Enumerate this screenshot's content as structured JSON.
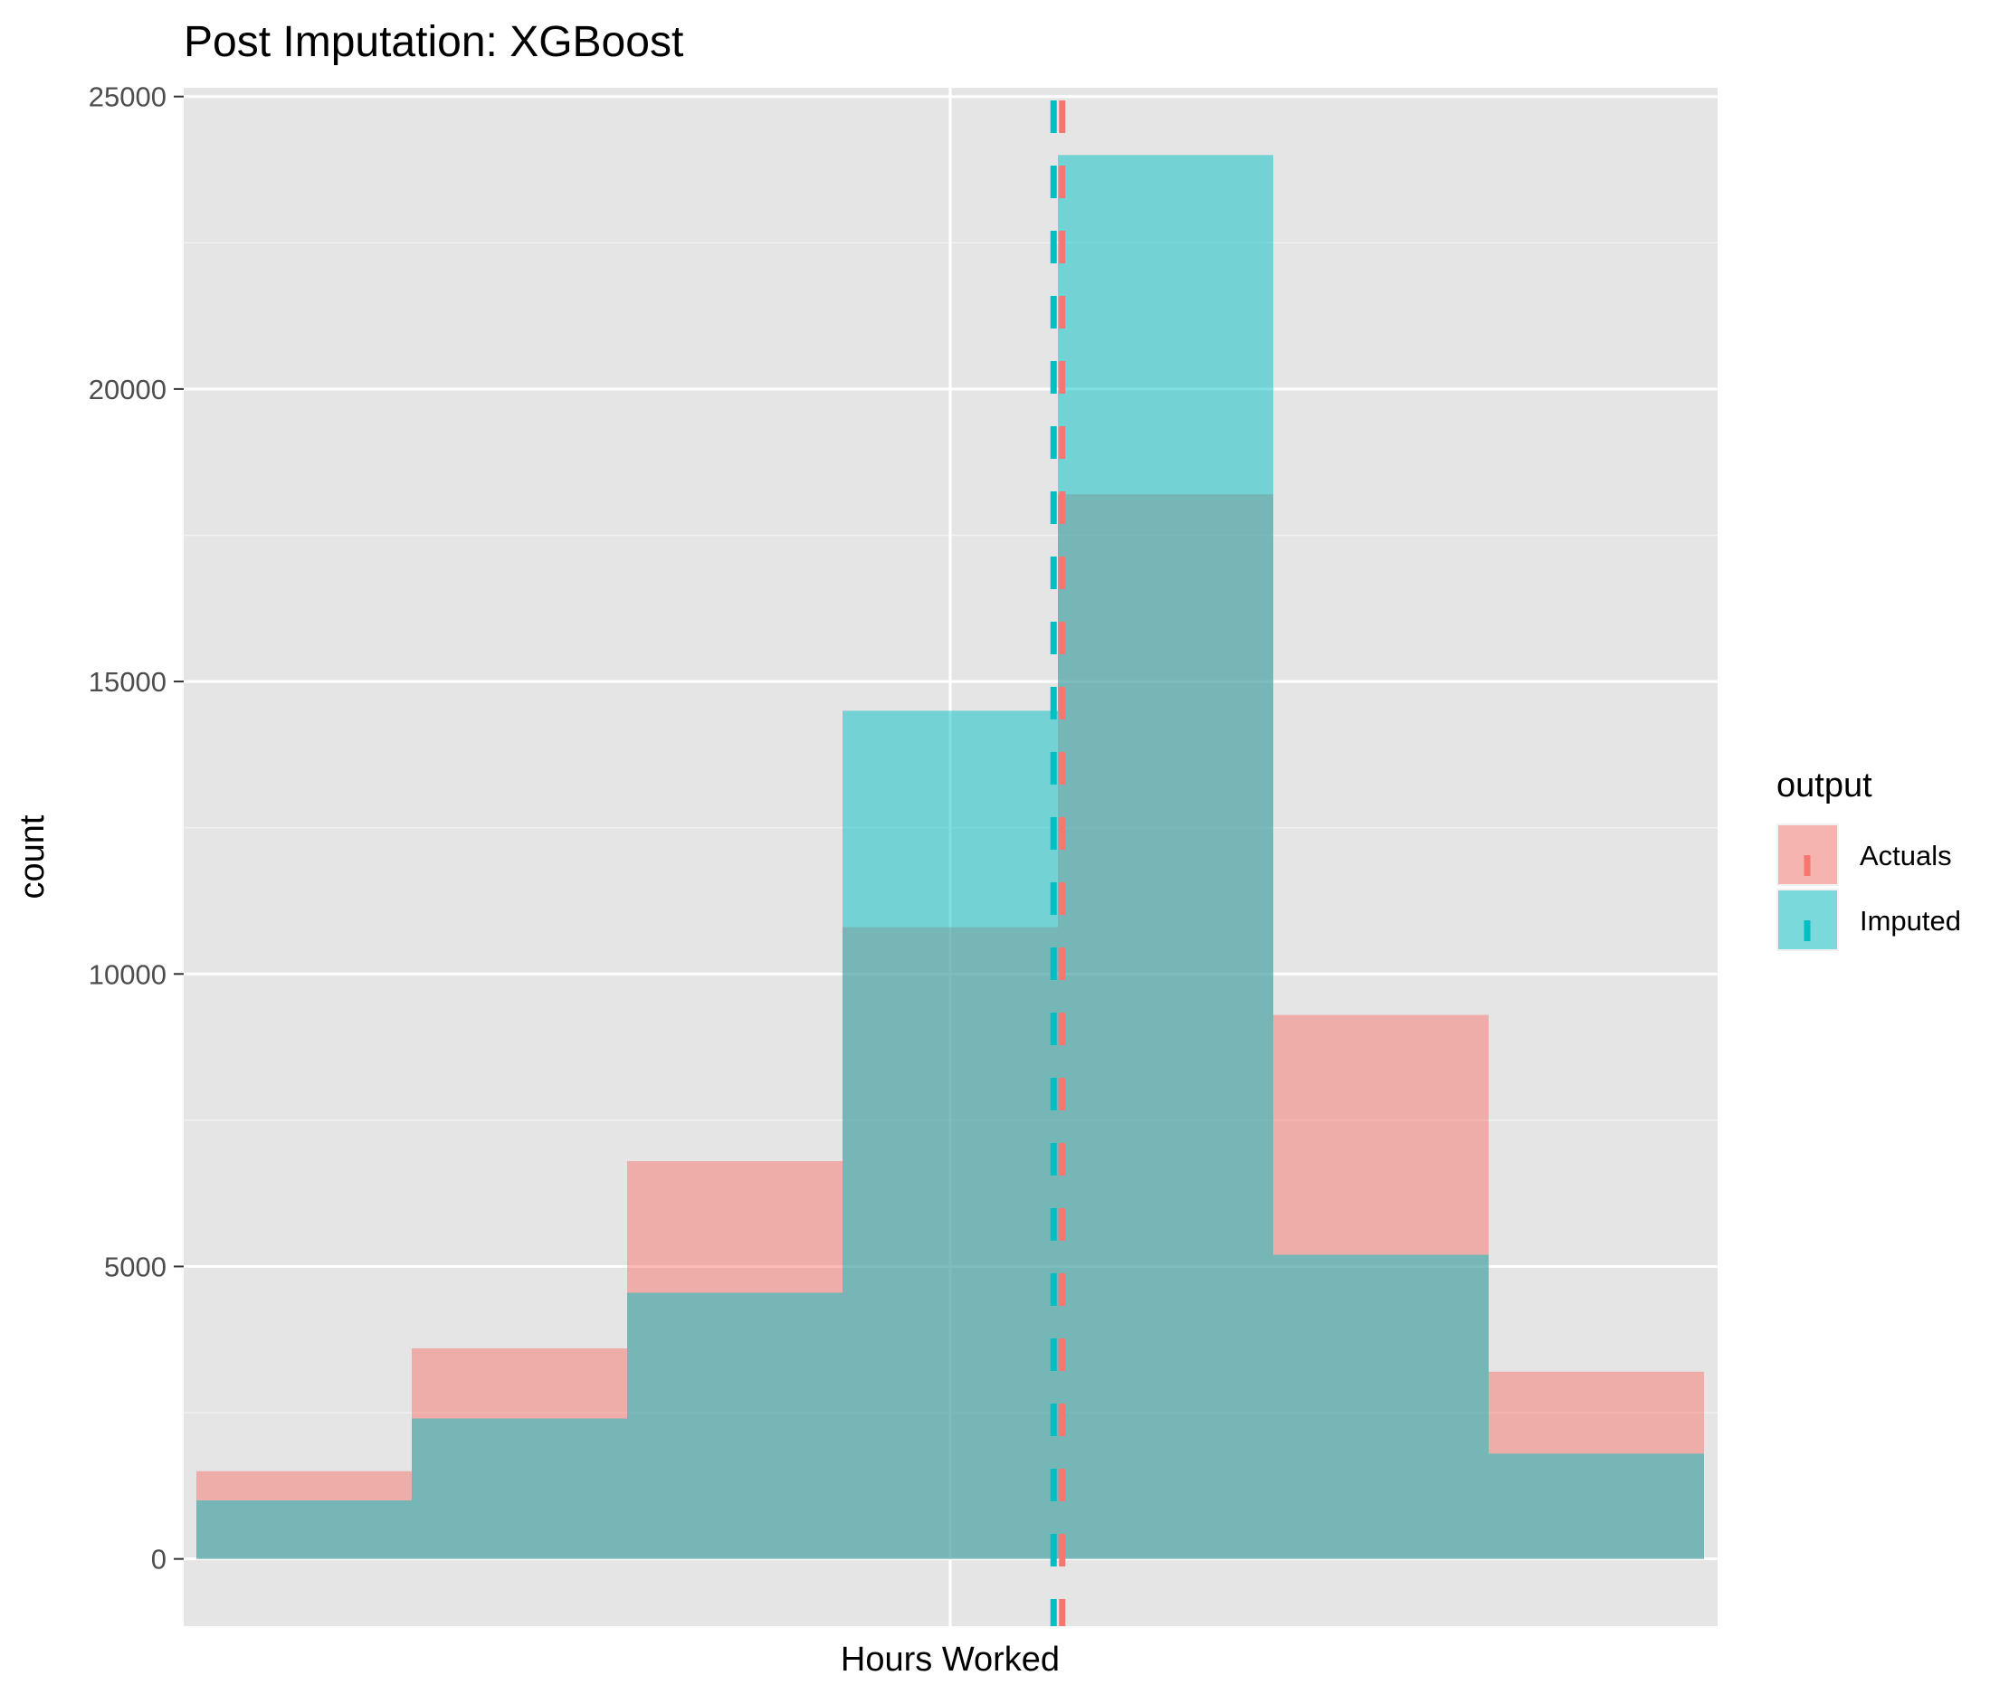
{
  "chart_data": {
    "type": "bar",
    "title": "Post Imputation: XGBoost",
    "xlabel": "Hours Worked",
    "ylabel": "count",
    "ylim": [
      -1150,
      25150
    ],
    "yticks": [
      0,
      5000,
      10000,
      15000,
      20000,
      25000
    ],
    "bins": 7,
    "series": [
      {
        "name": "Actuals",
        "color": "#F8766D",
        "values": [
          1500,
          3600,
          6800,
          10800,
          18200,
          9300,
          3200
        ]
      },
      {
        "name": "Imputed",
        "color": "#00BFC4",
        "values": [
          1000,
          2400,
          4550,
          14500,
          24000,
          5200,
          1800
        ]
      }
    ],
    "reference_lines": [
      {
        "series": "Actuals",
        "bin_position": 4.02,
        "style": "dashed"
      },
      {
        "series": "Imputed",
        "bin_position": 3.98,
        "style": "dashed"
      }
    ],
    "legend": {
      "title": "output",
      "position": "right"
    },
    "grid": true,
    "panel_background": "#E5E5E5"
  }
}
